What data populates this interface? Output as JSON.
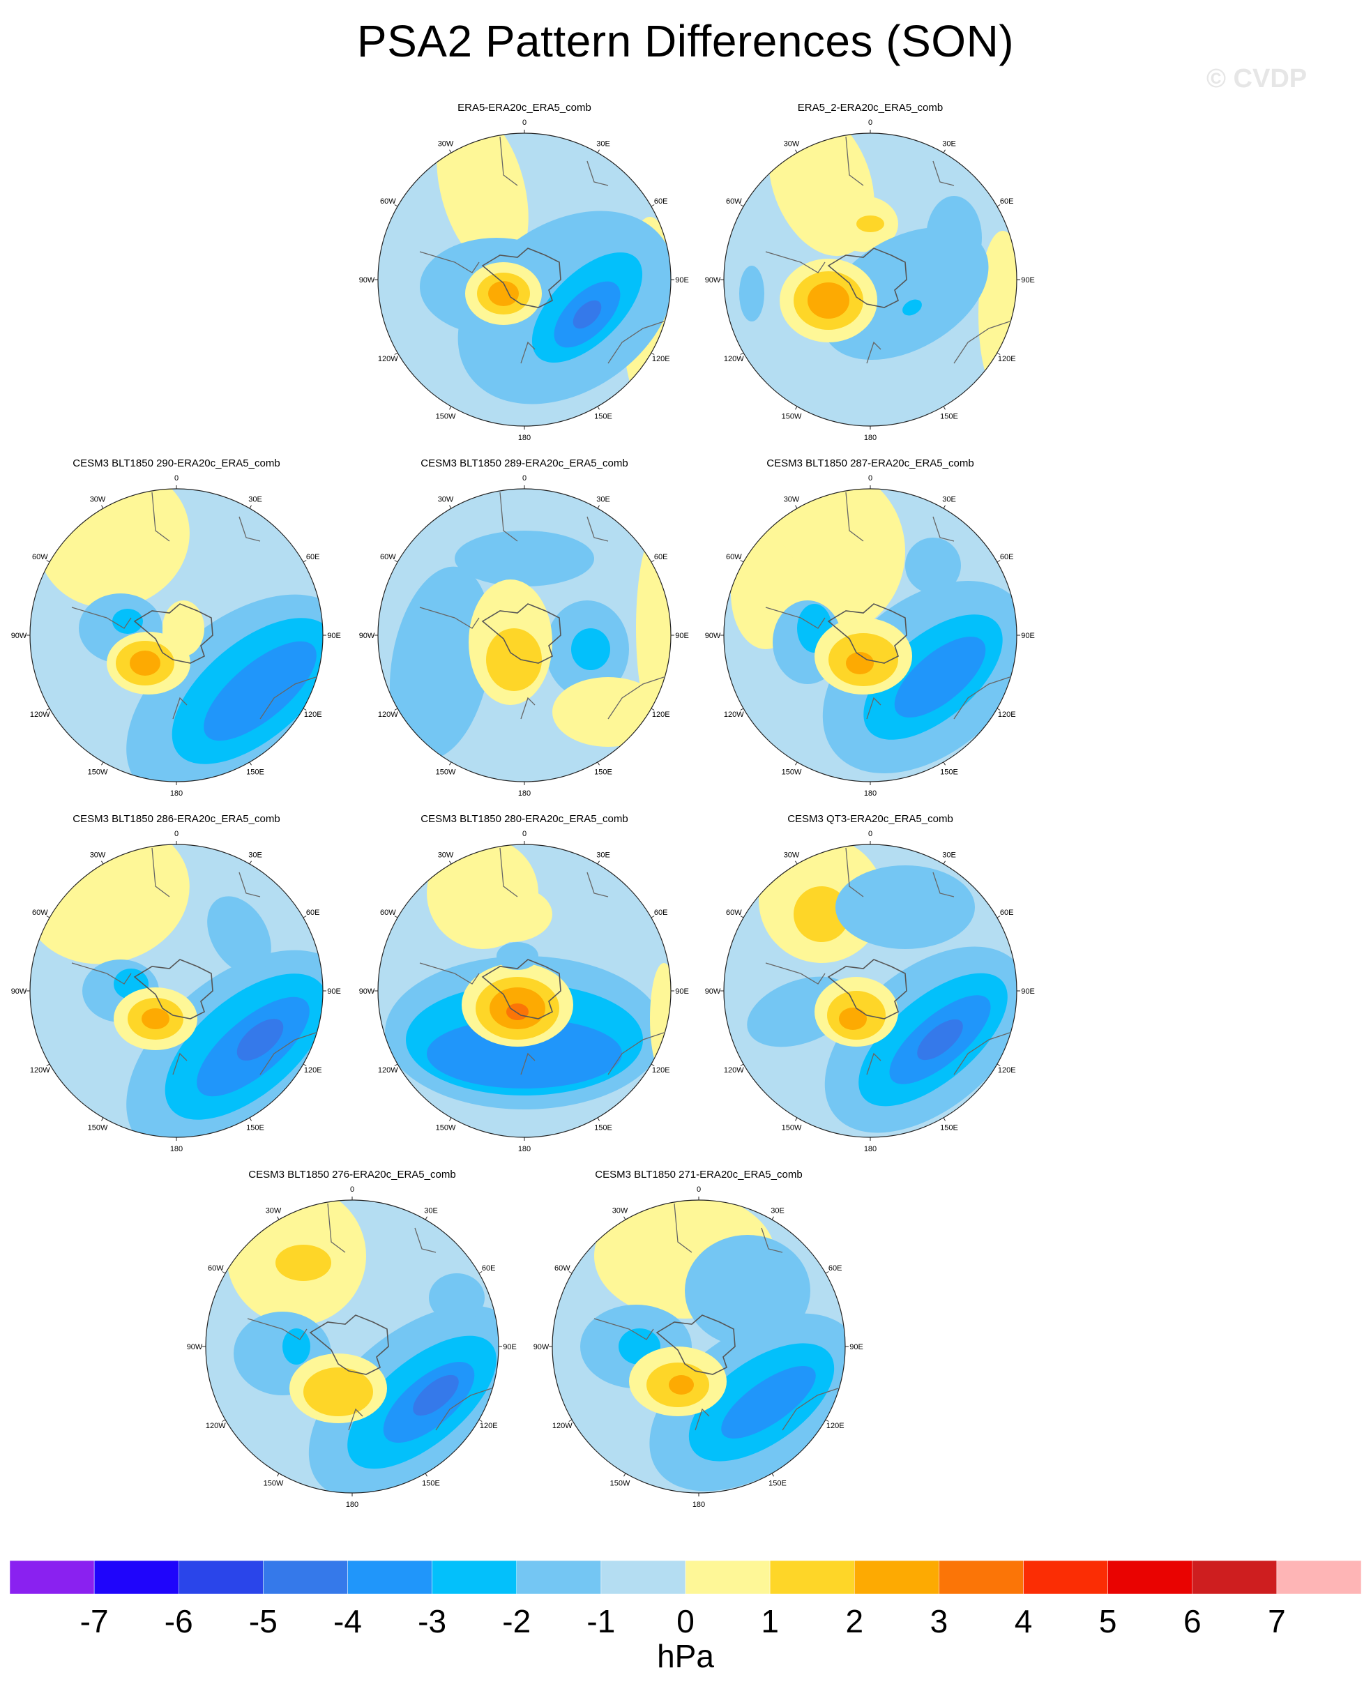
{
  "title": "PSA2 Pattern Differences (SON)",
  "watermark": "© CVDP",
  "longitude_labels": [
    "0",
    "30E",
    "60E",
    "90E",
    "120E",
    "150E",
    "180",
    "150W",
    "120W",
    "90W",
    "60W",
    "30W"
  ],
  "panels": [
    {
      "title": "ERA5-ERA20c_ERA5_comb",
      "variant": 0
    },
    {
      "title": "ERA5_2-ERA20c_ERA5_comb",
      "variant": 1
    },
    {
      "title": "CESM3 BLT1850 290-ERA20c_ERA5_comb",
      "variant": 2
    },
    {
      "title": "CESM3 BLT1850 289-ERA20c_ERA5_comb",
      "variant": 3
    },
    {
      "title": "CESM3 BLT1850 287-ERA20c_ERA5_comb",
      "variant": 4
    },
    {
      "title": "CESM3 BLT1850 286-ERA20c_ERA5_comb",
      "variant": 5
    },
    {
      "title": "CESM3 BLT1850 280-ERA20c_ERA5_comb",
      "variant": 6
    },
    {
      "title": "CESM3 QT3-ERA20c_ERA5_comb",
      "variant": 7
    },
    {
      "title": "CESM3 BLT1850 276-ERA20c_ERA5_comb",
      "variant": 8
    },
    {
      "title": "CESM3 BLT1850 271-ERA20c_ERA5_comb",
      "variant": 9
    }
  ],
  "colorbar": {
    "unit": "hPa",
    "levels": [
      "-7",
      "-6",
      "-5",
      "-4",
      "-3",
      "-2",
      "-1",
      "0",
      "1",
      "2",
      "3",
      "4",
      "5",
      "6",
      "7"
    ],
    "colors": [
      "#8a21f0",
      "#1f05fb",
      "#2a45ea",
      "#3579ea",
      "#2096fa",
      "#03c0fb",
      "#74c6f3",
      "#b4ddf2",
      "#fef797",
      "#fed628",
      "#fdaa02",
      "#fb7507",
      "#fb2d04",
      "#e90301",
      "#ce1e1f",
      "#feb5b6"
    ]
  }
}
